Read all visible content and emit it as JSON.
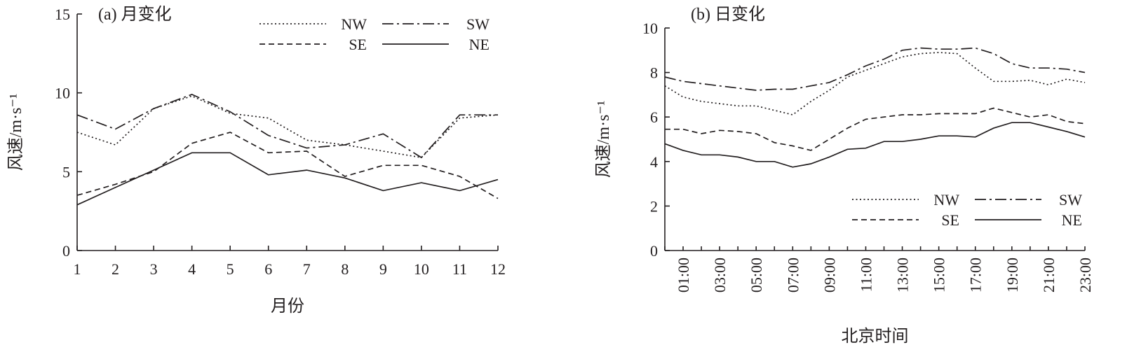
{
  "styles": {
    "NW": "2 3.5",
    "SW": "16 5 3 5",
    "SE": "8 5",
    "NE": ""
  },
  "color": "#231f20",
  "chart_data": [
    {
      "type": "line",
      "title": "(a) 月变化",
      "xlabel": "月份",
      "ylabel": "风速/m·s⁻¹",
      "x": [
        1,
        2,
        3,
        4,
        5,
        6,
        7,
        8,
        9,
        10,
        11,
        12
      ],
      "xticks": [
        "1",
        "2",
        "3",
        "4",
        "5",
        "6",
        "7",
        "8",
        "9",
        "10",
        "11",
        "12"
      ],
      "yticks": [
        "0",
        "5",
        "10",
        "15"
      ],
      "ylim": [
        0,
        15
      ],
      "legend": "top-right",
      "series": [
        {
          "name": "NW",
          "values": [
            7.5,
            6.7,
            9.0,
            9.8,
            8.7,
            8.4,
            7.0,
            6.7,
            6.3,
            5.9,
            8.4,
            8.6
          ]
        },
        {
          "name": "SW",
          "values": [
            8.6,
            7.7,
            9.0,
            9.9,
            8.8,
            7.3,
            6.5,
            6.7,
            7.4,
            5.9,
            8.6,
            8.6
          ]
        },
        {
          "name": "SE",
          "values": [
            3.5,
            4.2,
            5.0,
            6.8,
            7.5,
            6.2,
            6.3,
            4.7,
            5.4,
            5.4,
            4.7,
            3.3
          ]
        },
        {
          "name": "NE",
          "values": [
            2.9,
            4.0,
            5.1,
            6.2,
            6.2,
            4.8,
            5.1,
            4.6,
            3.8,
            4.3,
            3.8,
            4.5
          ]
        }
      ]
    },
    {
      "type": "line",
      "title": "(b) 日变化",
      "xlabel": "北京时间",
      "ylabel": "风速/m·s⁻¹",
      "x": [
        0,
        1,
        2,
        3,
        4,
        5,
        6,
        7,
        8,
        9,
        10,
        11,
        12,
        13,
        14,
        15,
        16,
        17,
        18,
        19,
        20,
        21,
        22,
        23
      ],
      "xticks": [
        "01:00",
        "03:00",
        "05:00",
        "07:00",
        "09:00",
        "11:00",
        "13:00",
        "15:00",
        "17:00",
        "19:00",
        "21:00",
        "23:00"
      ],
      "yticks": [
        "0",
        "2",
        "4",
        "6",
        "8",
        "10"
      ],
      "ylim": [
        0,
        10
      ],
      "legend": "bottom-right",
      "series": [
        {
          "name": "NW",
          "values": [
            7.4,
            6.9,
            6.7,
            6.6,
            6.5,
            6.5,
            6.3,
            6.1,
            6.7,
            7.2,
            7.8,
            8.1,
            8.4,
            8.7,
            8.85,
            8.9,
            8.85,
            8.2,
            7.6,
            7.6,
            7.65,
            7.45,
            7.7,
            7.55
          ]
        },
        {
          "name": "SW",
          "values": [
            7.8,
            7.6,
            7.5,
            7.4,
            7.3,
            7.2,
            7.25,
            7.25,
            7.4,
            7.55,
            7.9,
            8.3,
            8.6,
            9.0,
            9.1,
            9.05,
            9.05,
            9.1,
            8.85,
            8.4,
            8.2,
            8.2,
            8.15,
            8.0
          ]
        },
        {
          "name": "SE",
          "values": [
            5.45,
            5.45,
            5.25,
            5.4,
            5.35,
            5.25,
            4.85,
            4.7,
            4.5,
            5.0,
            5.5,
            5.9,
            6.0,
            6.1,
            6.1,
            6.15,
            6.15,
            6.15,
            6.4,
            6.2,
            6.0,
            6.1,
            5.8,
            5.7
          ]
        },
        {
          "name": "NE",
          "values": [
            4.8,
            4.5,
            4.3,
            4.3,
            4.2,
            4.0,
            4.0,
            3.75,
            3.9,
            4.2,
            4.55,
            4.6,
            4.9,
            4.9,
            5.0,
            5.15,
            5.15,
            5.1,
            5.5,
            5.75,
            5.75,
            5.55,
            5.35,
            5.1
          ]
        }
      ]
    }
  ]
}
